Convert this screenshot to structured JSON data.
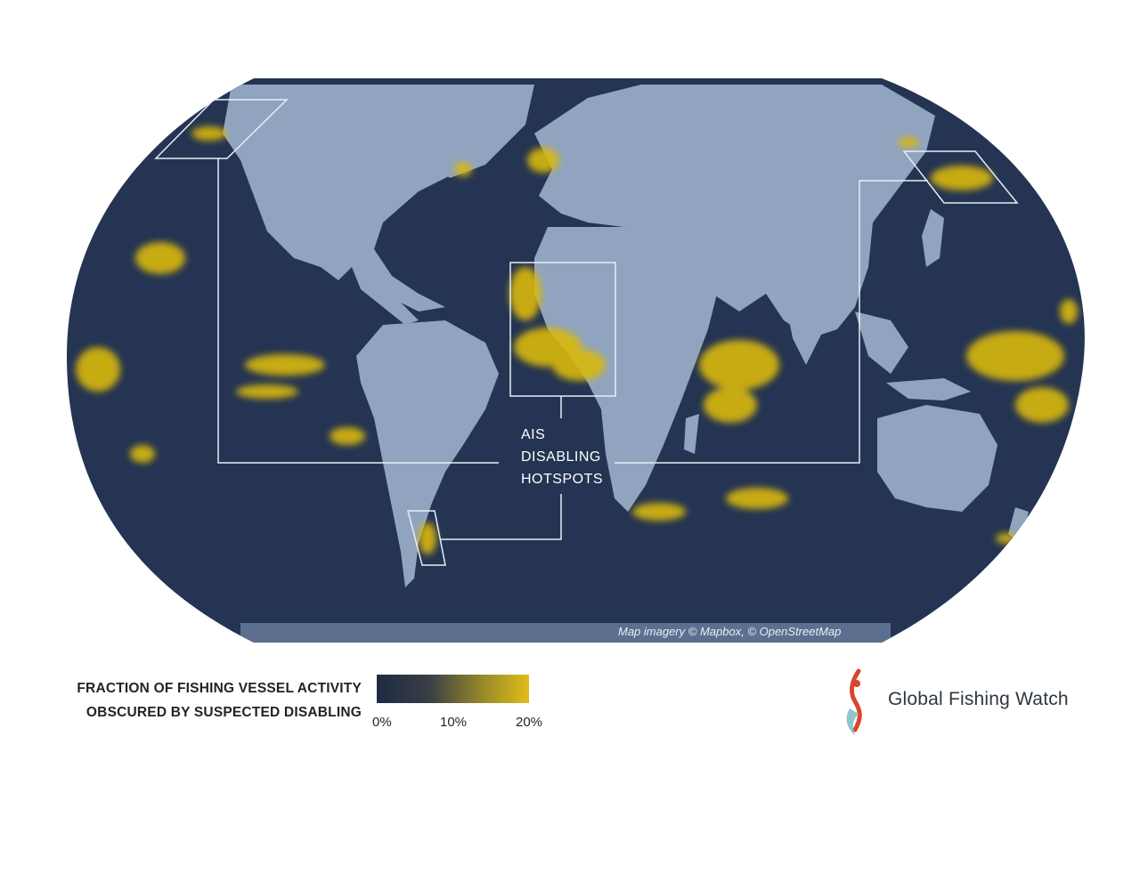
{
  "map": {
    "credit": "Map imagery © Mapbox, © OpenStreetMap",
    "hotspot_label_lines": [
      "AIS",
      "DISABLING",
      "HOTSPOTS"
    ],
    "colors": {
      "ocean": "#243452",
      "land": "#90a4c0",
      "hotspot": "#d9b80f",
      "outline": "#e6edf5"
    }
  },
  "legend": {
    "title_line1": "FRACTION OF FISHING VESSEL ACTIVITY",
    "title_line2": "OBSCURED BY SUSPECTED DISABLING",
    "ticks": [
      "0%",
      "10%",
      "20%"
    ],
    "gradient_colors": [
      "#1d2a44",
      "#e0be18"
    ]
  },
  "logo": {
    "text": "Global Fishing Watch",
    "icon": "fish-logo-icon"
  }
}
